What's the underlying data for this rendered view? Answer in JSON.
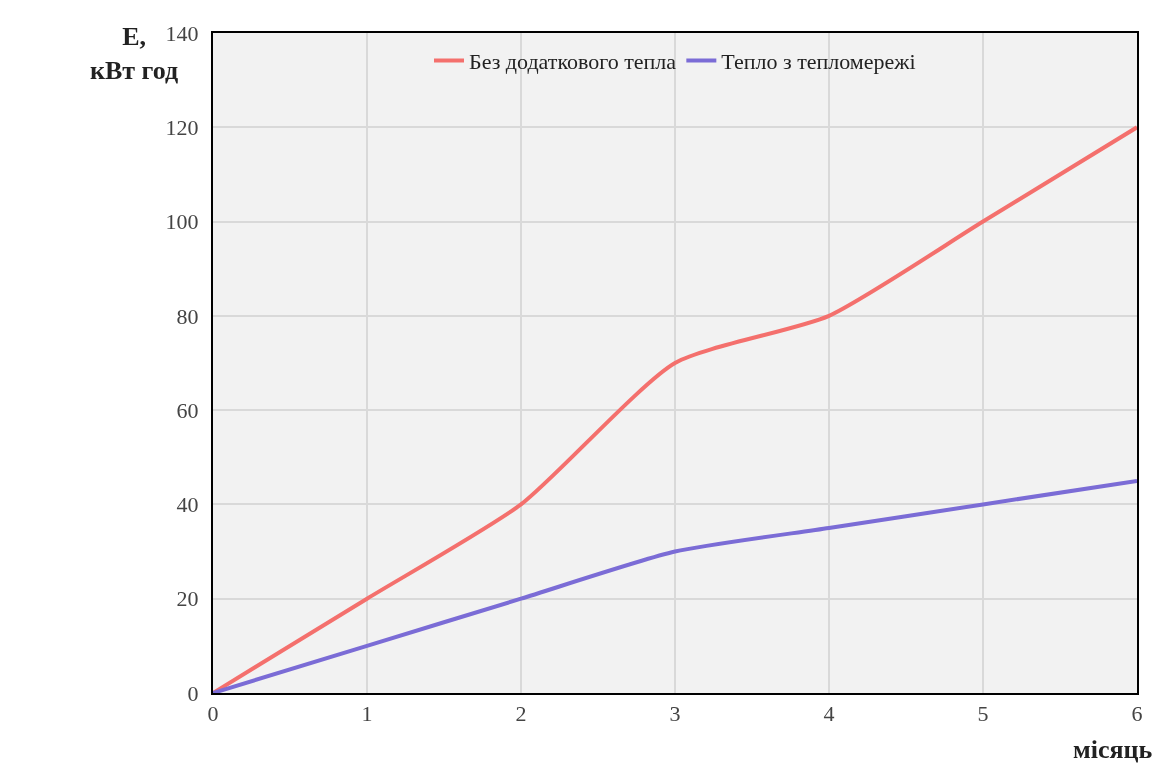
{
  "chart_data": {
    "type": "line",
    "xlabel": "місяць",
    "ylabel": "E,\nкВт год",
    "x": [
      0,
      1,
      2,
      3,
      4,
      5,
      6
    ],
    "series": [
      {
        "name": "Без додаткового тепла",
        "color": "#f4706d",
        "values": [
          0,
          20,
          40,
          70,
          80,
          100,
          120
        ]
      },
      {
        "name": "Тепло з тепломережі",
        "color": "#7b6cd6",
        "values": [
          0,
          10,
          20,
          30,
          35,
          40,
          45
        ]
      }
    ],
    "xlim": [
      0,
      6
    ],
    "xticks": [
      0,
      1,
      2,
      3,
      4,
      5,
      6
    ],
    "ylim": [
      0,
      140
    ],
    "yticks": [
      0,
      20,
      40,
      60,
      80,
      100,
      120,
      140
    ],
    "grid": true,
    "legend": "top",
    "marker": "none",
    "line_style": "solid"
  }
}
